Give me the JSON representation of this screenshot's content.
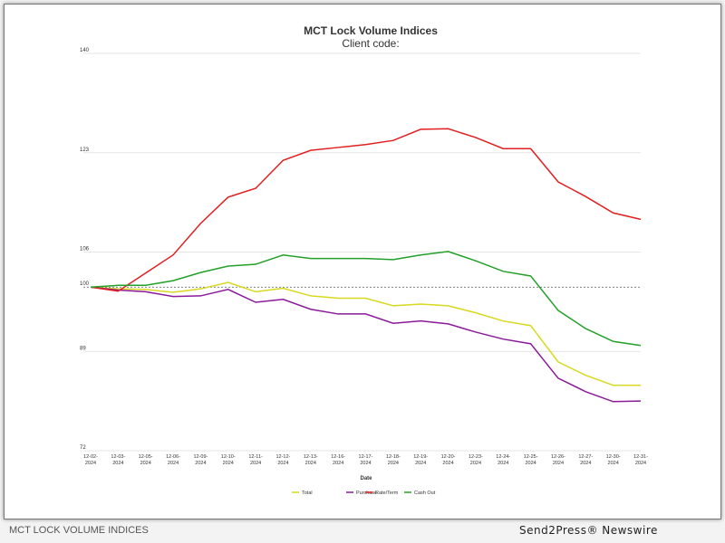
{
  "chart_data": {
    "type": "line",
    "title": "MCT Lock Volume Indices",
    "subtitle": "Client code:",
    "xlabel": "Date",
    "ylabel": "",
    "ylim": [
      72,
      140
    ],
    "yticks": [
      72,
      89,
      100,
      106,
      123,
      140
    ],
    "reference_line": 100,
    "legend_position": "bottom",
    "categories": [
      "12-02-2024",
      "12-03-2024",
      "12-05-2024",
      "12-06-2024",
      "12-09-2024",
      "12-10-2024",
      "12-11-2024",
      "12-12-2024",
      "12-13-2024",
      "12-16-2024",
      "12-17-2024",
      "12-18-2024",
      "12-19-2024",
      "12-20-2024",
      "12-23-2024",
      "12-24-2024",
      "12-25-2024",
      "12-26-2024",
      "12-27-2024",
      "12-30-2024",
      "12-31-2024"
    ],
    "series": [
      {
        "name": "Total",
        "color": "#d8d820",
        "values": [
          100,
          99.7,
          99.6,
          99.1,
          99.7,
          100.8,
          99.2,
          99.8,
          98.5,
          98.1,
          98.1,
          96.8,
          97.1,
          96.8,
          95.6,
          94.2,
          93.4,
          87.2,
          84.9,
          83.2,
          83.2
        ]
      },
      {
        "name": "Purchase",
        "color": "#8b1a9b",
        "values": [
          100,
          99.5,
          99.2,
          98.4,
          98.5,
          99.6,
          97.4,
          97.9,
          96.2,
          95.4,
          95.4,
          93.8,
          94.2,
          93.7,
          92.3,
          91.1,
          90.3,
          84.4,
          82.1,
          80.4,
          80.5
        ]
      },
      {
        "name": "Rate/Term",
        "color": "#e02020",
        "values": [
          100,
          99.3,
          102.4,
          105.5,
          110.9,
          115.4,
          116.9,
          121.7,
          123.4,
          123.9,
          124.4,
          125.1,
          127.0,
          127.1,
          125.6,
          123.7,
          123.7,
          118.0,
          115.5,
          112.7,
          111.6
        ]
      },
      {
        "name": "Cash Out",
        "color": "#22a02a",
        "values": [
          100,
          100.3,
          100.3,
          101.1,
          102.5,
          103.6,
          103.9,
          105.5,
          104.9,
          104.9,
          104.9,
          104.7,
          105.5,
          106.1,
          104.5,
          102.7,
          101.9,
          96.0,
          92.9,
          90.7,
          90.0
        ]
      }
    ]
  },
  "footer": {
    "left": "MCT LOCK VOLUME INDICES",
    "right": "Send2Press® Newswire"
  }
}
